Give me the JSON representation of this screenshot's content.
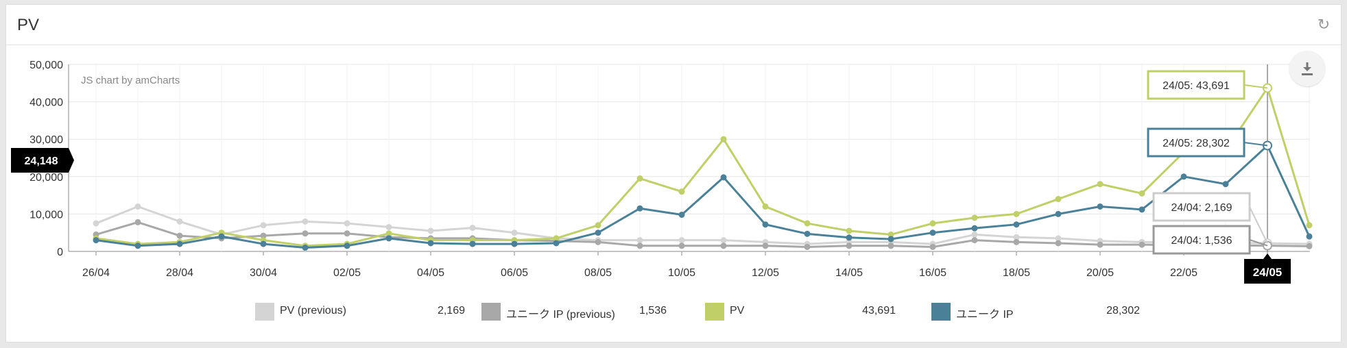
{
  "panel": {
    "title": "PV"
  },
  "credit": "JS chart by amCharts",
  "colors": {
    "pv_prev": "#d4d4d4",
    "uip_prev": "#a8a8a8",
    "pv": "#c0cf67",
    "uip": "#4a8199"
  },
  "icons": {
    "refresh": "refresh-icon",
    "download": "download-icon"
  },
  "chart_data": {
    "type": "line",
    "x": [
      "26/04",
      "27/04",
      "28/04",
      "29/04",
      "30/04",
      "01/05",
      "02/05",
      "03/05",
      "04/05",
      "05/05",
      "06/05",
      "07/05",
      "08/05",
      "09/05",
      "10/05",
      "11/05",
      "12/05",
      "13/05",
      "14/05",
      "15/05",
      "16/05",
      "17/05",
      "18/05",
      "19/05",
      "20/05",
      "21/05",
      "22/05",
      "23/05",
      "24/05",
      "25/05"
    ],
    "xticks": [
      "26/04",
      "28/04",
      "30/04",
      "02/05",
      "04/05",
      "06/05",
      "08/05",
      "10/05",
      "12/05",
      "14/05",
      "16/05",
      "18/05",
      "20/05",
      "22/05",
      "24/05"
    ],
    "ylim": [
      0,
      50000
    ],
    "yticks": [
      "50,000",
      "40,000",
      "30,000",
      "20,000",
      "10,000",
      "0"
    ],
    "ytick_values": [
      50000,
      40000,
      30000,
      20000,
      10000,
      0
    ],
    "grid": true,
    "series": [
      {
        "name": "PV (previous)",
        "color_key": "pv_prev",
        "values": [
          7500,
          12000,
          8000,
          4500,
          7000,
          8000,
          7500,
          6500,
          5500,
          6300,
          5000,
          3500,
          3000,
          3000,
          3000,
          3000,
          2500,
          2000,
          2500,
          2500,
          2000,
          4500,
          3800,
          3500,
          2800,
          2500,
          2500,
          2300,
          2169,
          2000
        ]
      },
      {
        "name": "ユニーク IP (previous)",
        "color_key": "uip_prev",
        "values": [
          4500,
          7800,
          4200,
          3500,
          4200,
          4800,
          4800,
          3800,
          3500,
          3500,
          3000,
          2800,
          2500,
          1500,
          1500,
          1500,
          1500,
          1200,
          1500,
          1500,
          1200,
          3000,
          2500,
          2200,
          1800,
          1800,
          1700,
          1600,
          1536,
          1400
        ]
      },
      {
        "name": "PV",
        "color_key": "pv",
        "values": [
          3500,
          2000,
          2500,
          5000,
          3000,
          1500,
          2000,
          4800,
          3000,
          3000,
          3000,
          3500,
          7000,
          19500,
          16000,
          30000,
          12000,
          7500,
          5500,
          4500,
          7500,
          9000,
          10000,
          14000,
          18000,
          15500,
          26500,
          27000,
          43691,
          7000
        ]
      },
      {
        "name": "ユニーク IP",
        "color_key": "uip",
        "values": [
          3000,
          1500,
          2000,
          4000,
          2000,
          1000,
          1500,
          3500,
          2200,
          2000,
          2000,
          2200,
          5000,
          11500,
          9800,
          19800,
          7200,
          4700,
          3700,
          3300,
          5000,
          6200,
          7200,
          10000,
          12000,
          11200,
          20000,
          18000,
          28302,
          4000
        ]
      }
    ],
    "cursor": {
      "category": "24/05",
      "value_label": "24,148",
      "balloons": [
        "24/05: 43,691",
        "24/05: 28,302",
        "24/04: 2,169",
        "24/04: 1,536"
      ]
    },
    "legend": [
      {
        "label": "PV (previous)",
        "value": "2,169",
        "color_key": "pv_prev"
      },
      {
        "label": "ユニーク IP (previous)",
        "value": "1,536",
        "color_key": "uip_prev"
      },
      {
        "label": "PV",
        "value": "43,691",
        "color_key": "pv"
      },
      {
        "label": "ユニーク IP",
        "value": "28,302",
        "color_key": "uip"
      }
    ]
  }
}
